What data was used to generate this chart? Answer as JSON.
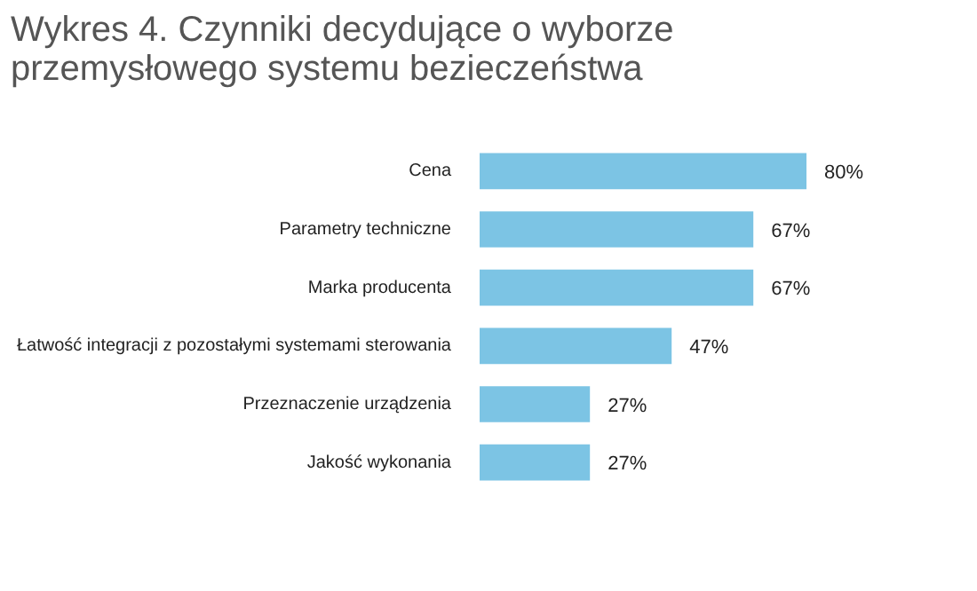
{
  "chart_data": {
    "type": "bar",
    "orientation": "horizontal",
    "title": "Wykres 4. Czynniki decydujące o wyborze przemysłowego systemu bezieczeństwa",
    "categories": [
      "Cena",
      "Parametry techniczne",
      "Marka producenta",
      "Łatwość integracji z pozostałymi systemami sterowania",
      "Przeznaczenie urządzenia",
      "Jakość wykonania"
    ],
    "values": [
      80,
      67,
      67,
      47,
      27,
      27
    ],
    "value_labels": [
      "80%",
      "67%",
      "67%",
      "47%",
      "27%",
      "27%"
    ],
    "color": "#7cc4e4"
  }
}
